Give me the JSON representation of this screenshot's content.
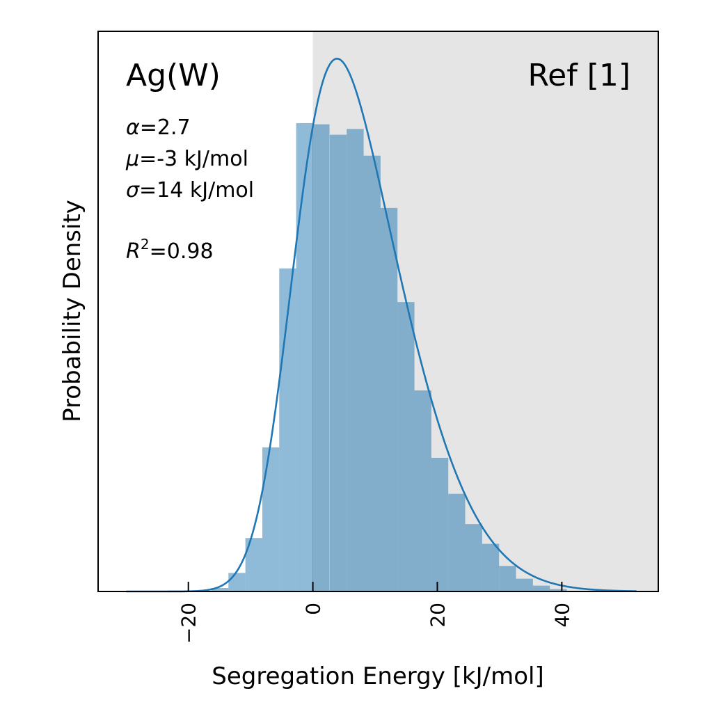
{
  "chart_data": {
    "type": "bar",
    "title": "",
    "xlabel": "Segregation Energy [kJ/mol]",
    "ylabel": "Probability Density",
    "xlim": [
      -34.5,
      55.5
    ],
    "ylim": [
      0,
      0.0482
    ],
    "xticks": [
      -20,
      0,
      20,
      40
    ],
    "xtick_labels": [
      "−20",
      "0",
      "20",
      "40"
    ],
    "shaded_region": {
      "from": 0,
      "to": 55.5,
      "color": "#e5e5e5"
    },
    "bar_color": "#1f77b4",
    "curve_color": "#1f77b4",
    "bin_width": 2.72,
    "bins": {
      "left_edges": [
        -16.28,
        -13.56,
        -10.84,
        -8.12,
        -5.4,
        -2.68,
        -0.04,
        2.72,
        5.44,
        8.16,
        10.88,
        13.6,
        16.32,
        19.04,
        21.76,
        24.48,
        27.2,
        29.92,
        32.64,
        35.36,
        38.08
      ],
      "values": [
        0.0003,
        0.0016,
        0.0046,
        0.0124,
        0.0278,
        0.0403,
        0.0402,
        0.0393,
        0.0398,
        0.0375,
        0.033,
        0.0249,
        0.0173,
        0.0115,
        0.0084,
        0.0058,
        0.0041,
        0.0022,
        0.0011,
        0.0005,
        0.0002
      ]
    },
    "series": [
      {
        "type": "histogram",
        "values": [
          0.0003,
          0.0016,
          0.0046,
          0.0124,
          0.0278,
          0.0403,
          0.0402,
          0.0393,
          0.0398,
          0.0375,
          0.033,
          0.0249,
          0.0173,
          0.0115,
          0.0084,
          0.0058,
          0.0041,
          0.0022,
          0.0011,
          0.0005,
          0.0002
        ]
      },
      {
        "type": "fit-curve",
        "distribution": "skew-normal",
        "alpha": 2.7,
        "mu": -3,
        "sigma": 14,
        "x_range": [
          -30,
          52
        ]
      }
    ]
  },
  "annotations": {
    "system": "Ag(W)",
    "reference": "Ref [1]",
    "alpha_symbol": "α",
    "alpha_value": "=2.7",
    "mu_symbol": "μ",
    "mu_value": "=-3 kJ/mol",
    "sigma_symbol": "σ",
    "sigma_value": "=14 kJ/mol",
    "r2_symbol": "R",
    "r2_sup": "2",
    "r2_value": "=0.98"
  }
}
